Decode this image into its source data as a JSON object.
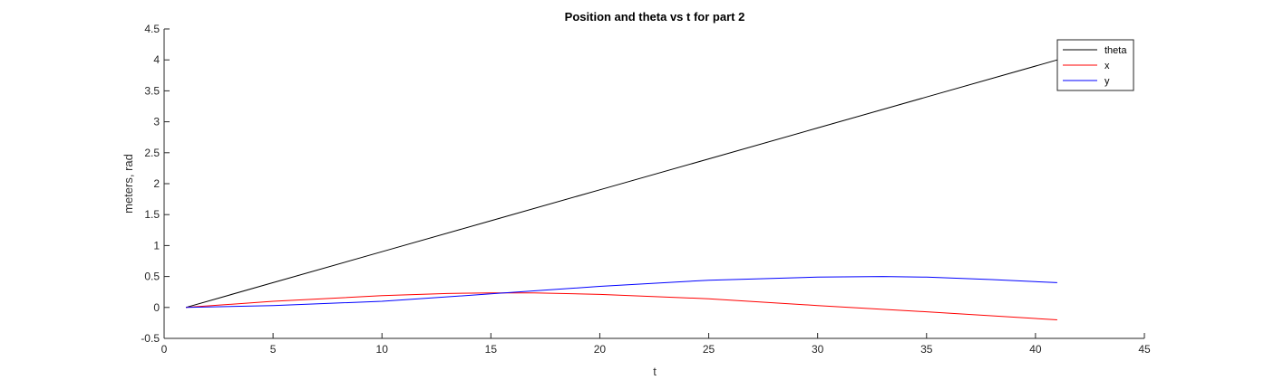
{
  "chart_data": {
    "type": "line",
    "title": "Position and theta vs t for part 2",
    "xlabel": "t",
    "ylabel": "meters, rad",
    "xlim": [
      0,
      45
    ],
    "ylim": [
      -0.5,
      4.5
    ],
    "xticks": [
      0,
      5,
      10,
      15,
      20,
      25,
      30,
      35,
      40,
      45
    ],
    "yticks": [
      -0.5,
      0,
      0.5,
      1,
      1.5,
      2,
      2.5,
      3,
      3.5,
      4,
      4.5
    ],
    "grid": false,
    "legend_position": "top-right",
    "series": [
      {
        "name": "theta",
        "color": "#000000",
        "x": [
          1,
          5,
          10,
          15,
          20,
          25,
          30,
          35,
          41
        ],
        "y": [
          0,
          0.4,
          0.9,
          1.4,
          1.9,
          2.4,
          2.9,
          3.4,
          4.0
        ]
      },
      {
        "name": "x",
        "color": "#ff0000",
        "x": [
          1,
          5,
          10,
          13,
          15,
          17,
          20,
          25,
          30,
          35,
          41
        ],
        "y": [
          0,
          0.1,
          0.19,
          0.225,
          0.235,
          0.235,
          0.21,
          0.14,
          0.03,
          -0.07,
          -0.2
        ]
      },
      {
        "name": "y",
        "color": "#0000ff",
        "x": [
          1,
          5,
          10,
          15,
          20,
          25,
          30,
          33,
          35,
          38,
          41
        ],
        "y": [
          0,
          0.03,
          0.1,
          0.22,
          0.34,
          0.44,
          0.49,
          0.5,
          0.49,
          0.45,
          0.4
        ]
      }
    ]
  }
}
